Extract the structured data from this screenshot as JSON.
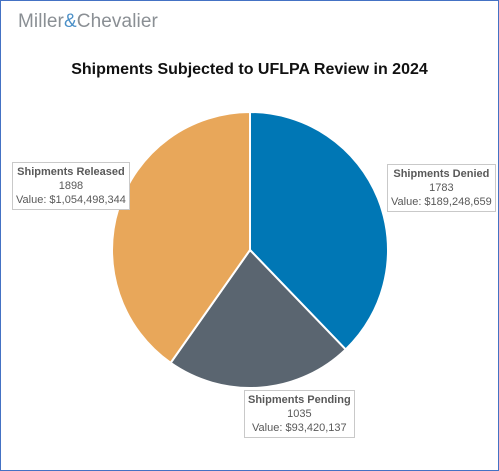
{
  "brand": {
    "name_left": "Miller",
    "ampersand": "&",
    "name_right": "Chevalier"
  },
  "chart_data": {
    "type": "pie",
    "title": "Shipments Subjected to UFLPA Review in 2024",
    "start_angle_deg": 0,
    "direction": "clockwise",
    "slices": [
      {
        "name": "Shipments Denied",
        "value": 1783,
        "value_label": "Value: $189,248,659",
        "color": "#0077b5"
      },
      {
        "name": "Shipments Pending",
        "value": 1035,
        "value_label": "Value: $93,420,137",
        "color": "#5a6570"
      },
      {
        "name": "Shipments Released",
        "value": 1898,
        "value_label": "Value: $1,054,498,344",
        "color": "#e8a75a"
      }
    ]
  },
  "colors": {
    "border": "#4472c4",
    "slice_stroke": "#ffffff"
  }
}
